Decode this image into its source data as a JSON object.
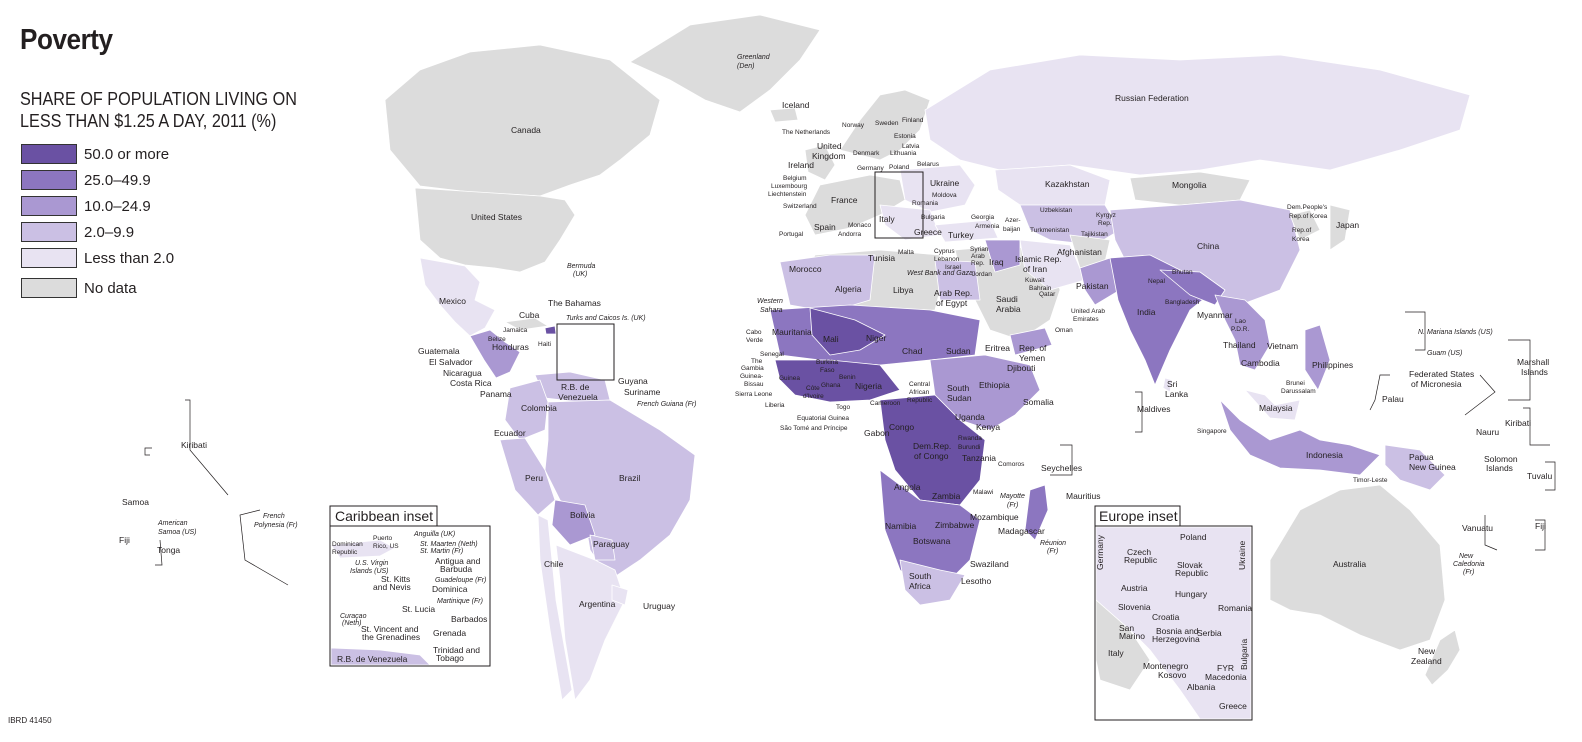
{
  "map": {
    "title": "Poverty",
    "subtitle_line1": "SHARE OF POPULATION LIVING ON",
    "subtitle_line2": "LESS THAN $1.25 A DAY, 2011 (%)",
    "legend": [
      {
        "label": "50.0 or more",
        "color": "#6a51a3"
      },
      {
        "label": "25.0–49.9",
        "color": "#8c76c0"
      },
      {
        "label": "10.0–24.9",
        "color": "#aa98d2"
      },
      {
        "label": "2.0–9.9",
        "color": "#cbc0e4"
      },
      {
        "label": "Less than 2.0",
        "color": "#e8e3f2"
      },
      {
        "label": "No data",
        "color": "#dcdcdc"
      }
    ],
    "code": "IBRD 41450",
    "insets": {
      "caribbean": "Caribbean inset",
      "europe": "Europe inset"
    },
    "labels": {
      "greenland": "Greenland",
      "greenland_sub": "(Den)",
      "iceland": "Iceland",
      "canada": "Canada",
      "united_states": "United States",
      "russia": "Russian Federation",
      "mexico": "Mexico",
      "bermuda": "Bermuda",
      "bermuda_sub": "(UK)",
      "bahamas": "The Bahamas",
      "turks": "Turks and Caicos Is. (UK)",
      "cuba": "Cuba",
      "jamaica": "Jamaica",
      "haiti": "Haiti",
      "belize": "Belize",
      "honduras": "Honduras",
      "guatemala": "Guatemala",
      "el_salvador": "El Salvador",
      "nicaragua": "Nicaragua",
      "costa_rica": "Costa Rica",
      "panama": "Panama",
      "venezuela_1": "R.B. de",
      "venezuela_2": "Venezuela",
      "guyana": "Guyana",
      "suriname": "Suriname",
      "french_guiana": "French Guiana (Fr)",
      "colombia": "Colombia",
      "ecuador": "Ecuador",
      "peru": "Peru",
      "brazil": "Brazil",
      "bolivia": "Bolivia",
      "paraguay": "Paraguay",
      "chile": "Chile",
      "argentina": "Argentina",
      "uruguay": "Uruguay",
      "kiribati": "Kiribati",
      "samoa": "Samoa",
      "american_samoa_1": "American",
      "american_samoa_2": "Samoa (US)",
      "fiji": "Fiji",
      "tonga": "Tonga",
      "french_polynesia_1": "French",
      "french_polynesia_2": "Polynesia (Fr)",
      "norway": "Norway",
      "sweden": "Sweden",
      "finland": "Finland",
      "netherlands": "The Netherlands",
      "uk_1": "United",
      "uk_2": "Kingdom",
      "denmark": "Denmark",
      "estonia": "Estonia",
      "latvia": "Latvia",
      "lithuania": "Lithuania",
      "ireland": "Ireland",
      "germany": "Germany",
      "poland": "Poland",
      "belarus": "Belarus",
      "belgium": "Belgium",
      "luxembourg": "Luxembourg",
      "liechtenstein": "Liechtenstein",
      "ukraine": "Ukraine",
      "moldova": "Moldova",
      "switzerland": "Switzerland",
      "france": "France",
      "romania": "Romania",
      "bulgaria": "Bulgaria",
      "portugal": "Portugal",
      "spain": "Spain",
      "monaco": "Monaco",
      "andorra": "Andorra",
      "italy": "Italy",
      "greece": "Greece",
      "turkey": "Turkey",
      "georgia": "Georgia",
      "armenia": "Armenia",
      "azerbaijan_1": "Azer-",
      "azerbaijan_2": "baijan",
      "kazakhstan": "Kazakhstan",
      "uzbekistan": "Uzbekistan",
      "turkmenistan": "Turkmenistan",
      "kyrgyz_1": "Kyrgyz",
      "kyrgyz_2": "Rep.",
      "tajikistan": "Tajikistan",
      "mongolia": "Mongolia",
      "china": "China",
      "japan": "Japan",
      "dprk_1": "Dem.People's",
      "dprk_2": "Rep.of Korea",
      "korea_1": "Rep.of",
      "korea_2": "Korea",
      "malta": "Malta",
      "tunisia": "Tunisia",
      "cyprus": "Cyprus",
      "lebanon": "Lebanon",
      "israel": "Israel",
      "west_bank": "West Bank and Gaza",
      "syria_1": "Syrian",
      "syria_2": "Arab",
      "syria_3": "Rep.",
      "jordan": "Jordan",
      "iraq": "Iraq",
      "iran_1": "Islamic Rep.",
      "iran_2": "of Iran",
      "afghanistan": "Afghanistan",
      "pakistan": "Pakistan",
      "kuwait": "Kuwait",
      "bahrain": "Bahrain",
      "qatar": "Qatar",
      "uae_1": "United Arab",
      "uae_2": "Emirates",
      "oman": "Oman",
      "saudi_1": "Saudi",
      "saudi_2": "Arabia",
      "yemen_1": "Rep. of",
      "yemen_2": "Yemen",
      "nepal": "Nepal",
      "bhutan": "Bhutan",
      "bangladesh": "Bangladesh",
      "india": "India",
      "myanmar": "Myanmar",
      "lao_1": "Lao",
      "lao_2": "P.D.R.",
      "thailand": "Thailand",
      "vietnam": "Vietnam",
      "cambodia": "Cambodia",
      "philippines": "Philippines",
      "sri_lanka_1": "Sri",
      "sri_lanka_2": "Lanka",
      "maldives": "Maldives",
      "brunei_1": "Brunei",
      "brunei_2": "Darussalam",
      "malaysia": "Malaysia",
      "singapore": "Singapore",
      "indonesia": "Indonesia",
      "timor": "Timor-Leste",
      "png_1": "Papua",
      "png_2": "New Guinea",
      "australia": "Australia",
      "new_zealand_1": "New",
      "new_zealand_2": "Zealand",
      "n_mariana": "N. Mariana Islands (US)",
      "guam": "Guam (US)",
      "marshall_1": "Marshall",
      "marshall_2": "Islands",
      "micronesia_1": "Federated States",
      "micronesia_2": "of Micronesia",
      "palau": "Palau",
      "nauru": "Nauru",
      "kiribati_e": "Kiribati",
      "solomon_1": "Solomon",
      "solomon_2": "Islands",
      "tuvalu": "Tuvalu",
      "vanuatu": "Vanuatu",
      "fiji_e": "Fiji",
      "new_caledonia_1": "New",
      "new_caledonia_2": "Caledonia",
      "new_caledonia_3": "(Fr)",
      "morocco": "Morocco",
      "algeria": "Algeria",
      "libya": "Libya",
      "egypt_1": "Arab Rep.",
      "egypt_2": "of Egypt",
      "western_sahara_1": "Western",
      "western_sahara_2": "Sahara",
      "mauritania": "Mauritania",
      "mali": "Mali",
      "niger": "Niger",
      "chad": "Chad",
      "sudan": "Sudan",
      "eritrea": "Eritrea",
      "djibouti": "Djibouti",
      "cabo_verde_1": "Cabo",
      "cabo_verde_2": "Verde",
      "senegal": "Senegal",
      "gambia_1": "The",
      "gambia_2": "Gambia",
      "guinea_bissau_1": "Guinea-",
      "guinea_bissau_2": "Bissau",
      "guinea": "Guinea",
      "sierra_leone": "Sierra Leone",
      "liberia": "Liberia",
      "burkina_1": "Burkina",
      "burkina_2": "Faso",
      "cote_1": "Côte",
      "cote_2": "d'Ivoire",
      "ghana": "Ghana",
      "togo": "Togo",
      "benin": "Benin",
      "nigeria": "Nigeria",
      "cameroon": "Cameroon",
      "car_1": "Central",
      "car_2": "African",
      "car_3": "Republic",
      "south_sudan_1": "South",
      "south_sudan_2": "Sudan",
      "ethiopia": "Ethiopia",
      "somalia": "Somalia",
      "eq_guinea": "Equatorial Guinea",
      "sao_tome": "São Tomé and Príncipe",
      "gabon": "Gabon",
      "congo": "Congo",
      "uganda": "Uganda",
      "kenya": "Kenya",
      "rwanda": "Rwanda",
      "burundi": "Burundi",
      "drc_1": "Dem.Rep.",
      "drc_2": "of Congo",
      "tanzania": "Tanzania",
      "comoros": "Comoros",
      "seychelles": "Seychelles",
      "angola": "Angola",
      "zambia": "Zambia",
      "malawi": "Malawi",
      "mayotte_1": "Mayotte",
      "mayotte_2": "(Fr)",
      "mauritius": "Mauritius",
      "namibia": "Namibia",
      "zimbabwe": "Zimbabwe",
      "mozambique": "Mozambique",
      "madagascar": "Madagascar",
      "botswana": "Botswana",
      "reunion_1": "Réunion",
      "reunion_2": "(Fr)",
      "swaziland": "Swaziland",
      "south_africa_1": "South",
      "south_africa_2": "Africa",
      "lesotho": "Lesotho",
      "c_dominican_1": "Dominican",
      "c_dominican_2": "Republic",
      "c_puerto_1": "Puerto",
      "c_puerto_2": "Rico, US",
      "c_anguilla": "Anguilla (UK)",
      "c_st_maarten": "St. Maarten (Neth)",
      "c_st_martin": "St. Martin (Fr)",
      "c_usvi_1": "U.S. Virgin",
      "c_usvi_2": "Islands (US)",
      "c_antigua_1": "Antigua and",
      "c_antigua_2": "Barbuda",
      "c_st_kitts_1": "St. Kitts",
      "c_st_kitts_2": "and Nevis",
      "c_guadeloupe": "Guadeloupe (Fr)",
      "c_dominica": "Dominica",
      "c_martinique": "Martinique (Fr)",
      "c_st_lucia": "St. Lucia",
      "c_curacao_1": "Curaçao",
      "c_curacao_2": "(Neth)",
      "c_barbados": "Barbados",
      "c_st_vincent_1": "St. Vincent and",
      "c_st_vincent_2": "the Grenadines",
      "c_grenada": "Grenada",
      "c_trinidad_1": "Trinidad and",
      "c_trinidad_2": "Tobago",
      "c_venezuela": "R.B. de Venezuela",
      "e_poland": "Poland",
      "e_germany": "Germany",
      "e_czech_1": "Czech",
      "e_czech_2": "Republic",
      "e_ukraine": "Ukraine",
      "e_slovak_1": "Slovak",
      "e_slovak_2": "Republic",
      "e_austria": "Austria",
      "e_hungary": "Hungary",
      "e_slovenia": "Slovenia",
      "e_croatia": "Croatia",
      "e_romania": "Romania",
      "e_san_marino_1": "San",
      "e_san_marino_2": "Marino",
      "e_bosnia_1": "Bosnia and",
      "e_bosnia_2": "Herzegovina",
      "e_serbia": "Serbia",
      "e_italy": "Italy",
      "e_bulgaria": "Bulgaria",
      "e_montenegro": "Montenegro",
      "e_kosovo": "Kosovo",
      "e_fyr_1": "FYR",
      "e_fyr_2": "Macedonia",
      "e_albania": "Albania",
      "e_greece": "Greece"
    }
  }
}
